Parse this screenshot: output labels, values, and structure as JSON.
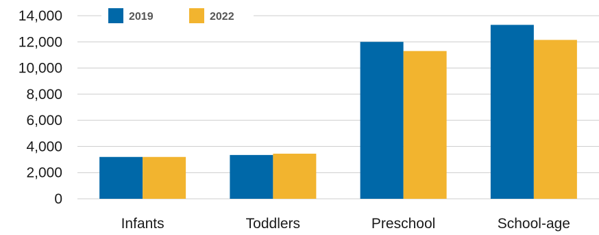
{
  "chart_data": {
    "type": "bar",
    "categories": [
      "Infants",
      "Toddlers",
      "Preschool",
      "School-age"
    ],
    "series": [
      {
        "name": "2019",
        "values": [
          3200,
          3350,
          12000,
          13300
        ]
      },
      {
        "name": "2022",
        "values": [
          3200,
          3450,
          11300,
          12150
        ]
      }
    ],
    "title": "",
    "xlabel": "",
    "ylabel": "",
    "ylim": [
      0,
      14000
    ],
    "yticks": [
      0,
      2000,
      4000,
      6000,
      8000,
      10000,
      12000,
      14000
    ],
    "ytick_labels": [
      "0",
      "2,000",
      "4,000",
      "6,000",
      "8,000",
      "10,000",
      "12,000",
      "14,000"
    ],
    "grid": true,
    "legend_position": "top-left",
    "colors": {
      "2019": "#0068a8",
      "2022": "#f2b42f",
      "grid": "#cccccc"
    }
  }
}
